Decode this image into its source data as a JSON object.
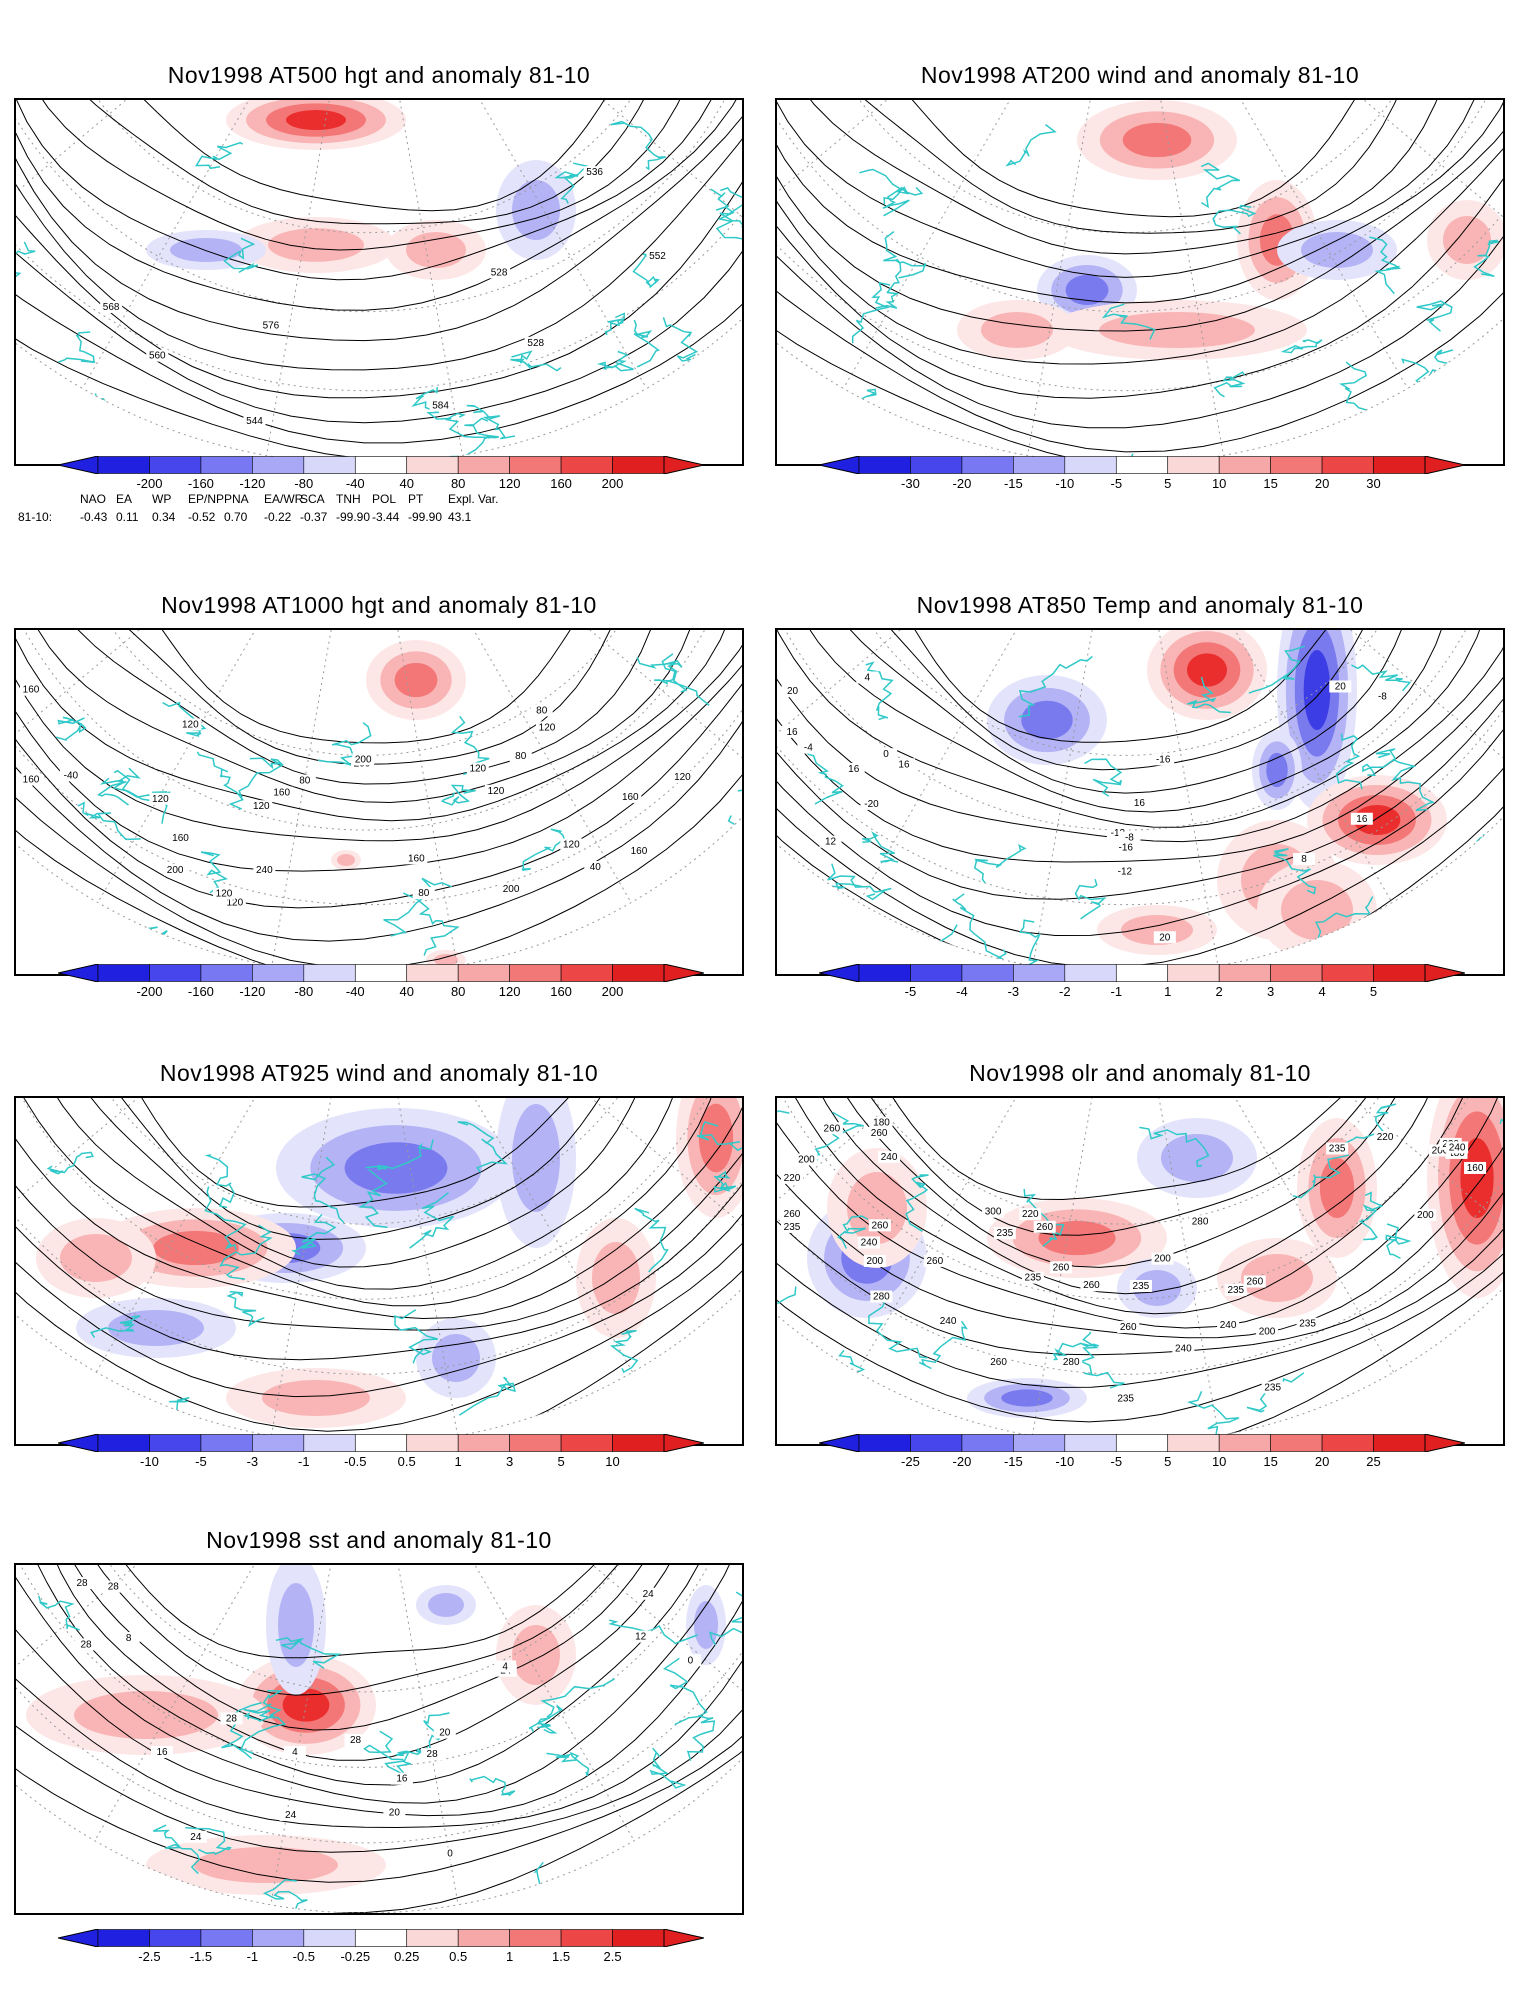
{
  "panels": [
    {
      "id": "hgt500",
      "title": "Nov1998 AT500 hgt and anomaly 81-10",
      "contour_labels": [
        "528",
        "528",
        "536",
        "544",
        "552",
        "560",
        "568",
        "576",
        "584"
      ],
      "colorbar": {
        "ticks": [
          "-200",
          "-160",
          "-120",
          "-80",
          "-40",
          "40",
          "80",
          "120",
          "160",
          "200"
        ],
        "scheme": "bwr"
      }
    },
    {
      "id": "wind200",
      "title": "Nov1998 AT200 wind and anomaly 81-10",
      "contour_labels": [],
      "colorbar": {
        "ticks": [
          "-30",
          "-20",
          "-15",
          "-10",
          "-5",
          "5",
          "10",
          "15",
          "20",
          "30"
        ],
        "scheme": "bwr"
      }
    },
    {
      "id": "hgt1000",
      "title": "Nov1998 AT1000 hgt and anomaly 81-10",
      "contour_labels": [
        "160",
        "120",
        "80",
        "160",
        "200",
        "40",
        "-40",
        "120",
        "80",
        "160",
        "120",
        "200",
        "240",
        "200",
        "120",
        "120",
        "160",
        "160",
        "120",
        "120",
        "200",
        "160",
        "120",
        "80",
        "120",
        "80",
        "160",
        "120"
      ],
      "colorbar": {
        "ticks": [
          "-200",
          "-160",
          "-120",
          "-80",
          "-40",
          "40",
          "80",
          "120",
          "160",
          "200"
        ],
        "scheme": "bwr"
      }
    },
    {
      "id": "temp850",
      "title": "Nov1998 AT850 Temp and anomaly 81-10",
      "contour_labels": [
        "-16",
        "-12",
        "-20",
        "-16",
        "-12",
        "-8",
        "-4",
        "0",
        "4",
        "8",
        "12",
        "16",
        "16",
        "16",
        "20",
        "20",
        "20",
        "16",
        "16",
        "-8"
      ],
      "colorbar": {
        "ticks": [
          "-5",
          "-4",
          "-3",
          "-2",
          "-1",
          "1",
          "2",
          "3",
          "4",
          "5"
        ],
        "scheme": "bwr"
      }
    },
    {
      "id": "wind925",
      "title": "Nov1998 AT925 wind and anomaly 81-10",
      "contour_labels": [],
      "colorbar": {
        "ticks": [
          "-10",
          "-5",
          "-3",
          "-1",
          "-0.5",
          "0.5",
          "1",
          "3",
          "5",
          "10"
        ],
        "scheme": "bwr"
      }
    },
    {
      "id": "olr",
      "title": "Nov1998 olr and anomaly 81-10",
      "contour_labels": [
        "235",
        "260",
        "235",
        "220",
        "200",
        "180",
        "160",
        "200",
        "180",
        "200",
        "220",
        "240",
        "235",
        "200",
        "280",
        "235",
        "260",
        "240",
        "260",
        "235",
        "260",
        "260",
        "240",
        "235",
        "260",
        "280",
        "300",
        "260",
        "260",
        "235",
        "200",
        "240",
        "235",
        "260",
        "220",
        "200",
        "235",
        "260",
        "280",
        "260",
        "240",
        "220",
        "240"
      ],
      "colorbar": {
        "ticks": [
          "-25",
          "-20",
          "-15",
          "-10",
          "-5",
          "5",
          "10",
          "15",
          "20",
          "25"
        ],
        "scheme": "bwr"
      }
    },
    {
      "id": "sst",
      "title": "Nov1998 sst and anomaly 81-10",
      "contour_labels": [
        "28",
        "24",
        "28",
        "24",
        "8",
        "4",
        "0",
        "12",
        "16",
        "20",
        "24",
        "0",
        "4",
        "16",
        "20",
        "24",
        "28",
        "28",
        "28",
        "28"
      ],
      "colorbar": {
        "ticks": [
          "-2.5",
          "-1.5",
          "-1",
          "-0.5",
          "-0.25",
          "0.25",
          "0.5",
          "1",
          "1.5",
          "2.5"
        ],
        "scheme": "bwr"
      }
    }
  ],
  "indices": {
    "headers": [
      "NAO",
      "EA",
      "WP",
      "EP/NP",
      "PNA",
      "EA/WR",
      "SCA",
      "TNH",
      "POL",
      "PT",
      "Expl. Var."
    ],
    "row_label": "81-10:",
    "values": [
      "-0.43",
      "0.11",
      "0.34",
      "-0.52",
      "0.70",
      "-0.22",
      "-0.37",
      "-99.90",
      "-3.44",
      "-99.90",
      "43.1"
    ]
  },
  "colors": {
    "ocean_coast": "#30c8c8",
    "contour": "#000000",
    "grid": "#9a9a9a"
  }
}
